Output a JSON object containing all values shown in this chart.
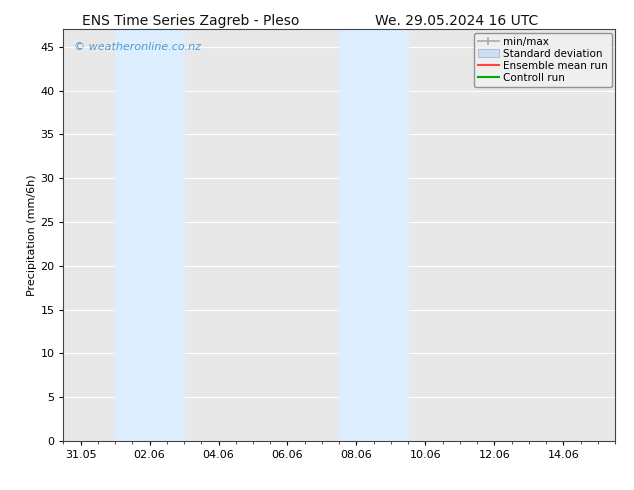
{
  "title_left": "ENS Time Series Zagreb - Pleso",
  "title_right": "We. 29.05.2024 16 UTC",
  "ylabel": "Precipitation (mm/6h)",
  "watermark": "© weatheronline.co.nz",
  "watermark_color": "#5599cc",
  "background_color": "#ffffff",
  "plot_bg_color": "#e8e8e8",
  "ylim": [
    0,
    47
  ],
  "yticks": [
    0,
    5,
    10,
    15,
    20,
    25,
    30,
    35,
    40,
    45
  ],
  "xtick_labels": [
    "31.05",
    "02.06",
    "04.06",
    "06.06",
    "08.06",
    "10.06",
    "12.06",
    "14.06"
  ],
  "xtick_positions": [
    0,
    2,
    4,
    6,
    8,
    10,
    12,
    14
  ],
  "xlim": [
    -0.5,
    15.5
  ],
  "shaded_bands": [
    {
      "x_start": 1.0,
      "x_end": 3.0,
      "color": "#ddeeff"
    },
    {
      "x_start": 7.5,
      "x_end": 9.5,
      "color": "#ddeeff"
    }
  ],
  "legend_items": [
    {
      "label": "min/max",
      "color": "#aaaaaa"
    },
    {
      "label": "Standard deviation",
      "color": "#ccddf5"
    },
    {
      "label": "Ensemble mean run",
      "color": "#ff4444"
    },
    {
      "label": "Controll run",
      "color": "#00aa00"
    }
  ],
  "title_fontsize": 10,
  "axis_fontsize": 8,
  "tick_fontsize": 8,
  "legend_fontsize": 7.5,
  "ylabel_fontsize": 8
}
